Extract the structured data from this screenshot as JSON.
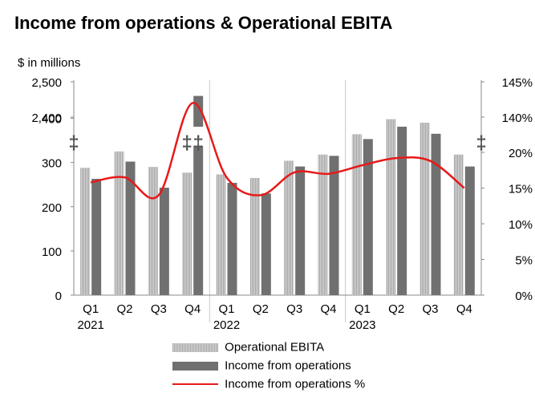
{
  "title": "Income from operations & Operational EBITA",
  "unit_label": "$ in millions",
  "legend": {
    "ebita": "Operational EBITA",
    "income": "Income from operations",
    "pct": "Income from operations %"
  },
  "colors": {
    "ebita": "#bdbdbd",
    "income": "#707070",
    "pct_line": "#e81919",
    "axis": "#888888"
  },
  "chart_data": {
    "type": "bar",
    "title": "Income from operations & Operational EBITA",
    "ylabel": "$ in millions",
    "quarters": [
      "Q1",
      "Q2",
      "Q3",
      "Q4",
      "Q1",
      "Q2",
      "Q3",
      "Q4",
      "Q1",
      "Q2",
      "Q3",
      "Q4"
    ],
    "years": [
      {
        "label": "2021",
        "index": 0
      },
      {
        "label": "2022",
        "index": 4
      },
      {
        "label": "2023",
        "index": 8
      }
    ],
    "left_axis_ticks": [
      "0",
      "100",
      "200",
      "300",
      "400",
      "2,400",
      "2,500"
    ],
    "right_axis_ticks": [
      "0%",
      "5%",
      "10%",
      "15%",
      "20%",
      "140%",
      "145%"
    ],
    "axis_break_symbol": "‡",
    "series": [
      {
        "name": "Operational EBITA",
        "kind": "bar",
        "values": [
          288,
          325,
          290,
          277,
          273,
          265,
          304,
          318,
          364,
          398,
          390,
          318
        ]
      },
      {
        "name": "Income from operations",
        "kind": "bar",
        "values": [
          263,
          302,
          243,
          2460,
          254,
          230,
          291,
          315,
          353,
          381,
          365,
          291
        ]
      },
      {
        "name": "Income from operations %",
        "kind": "line",
        "axis": "right",
        "values": [
          15.8,
          16.5,
          14.0,
          142.0,
          16.5,
          14.0,
          17.2,
          17.0,
          18.2,
          19.2,
          18.8,
          15.0
        ]
      }
    ]
  }
}
